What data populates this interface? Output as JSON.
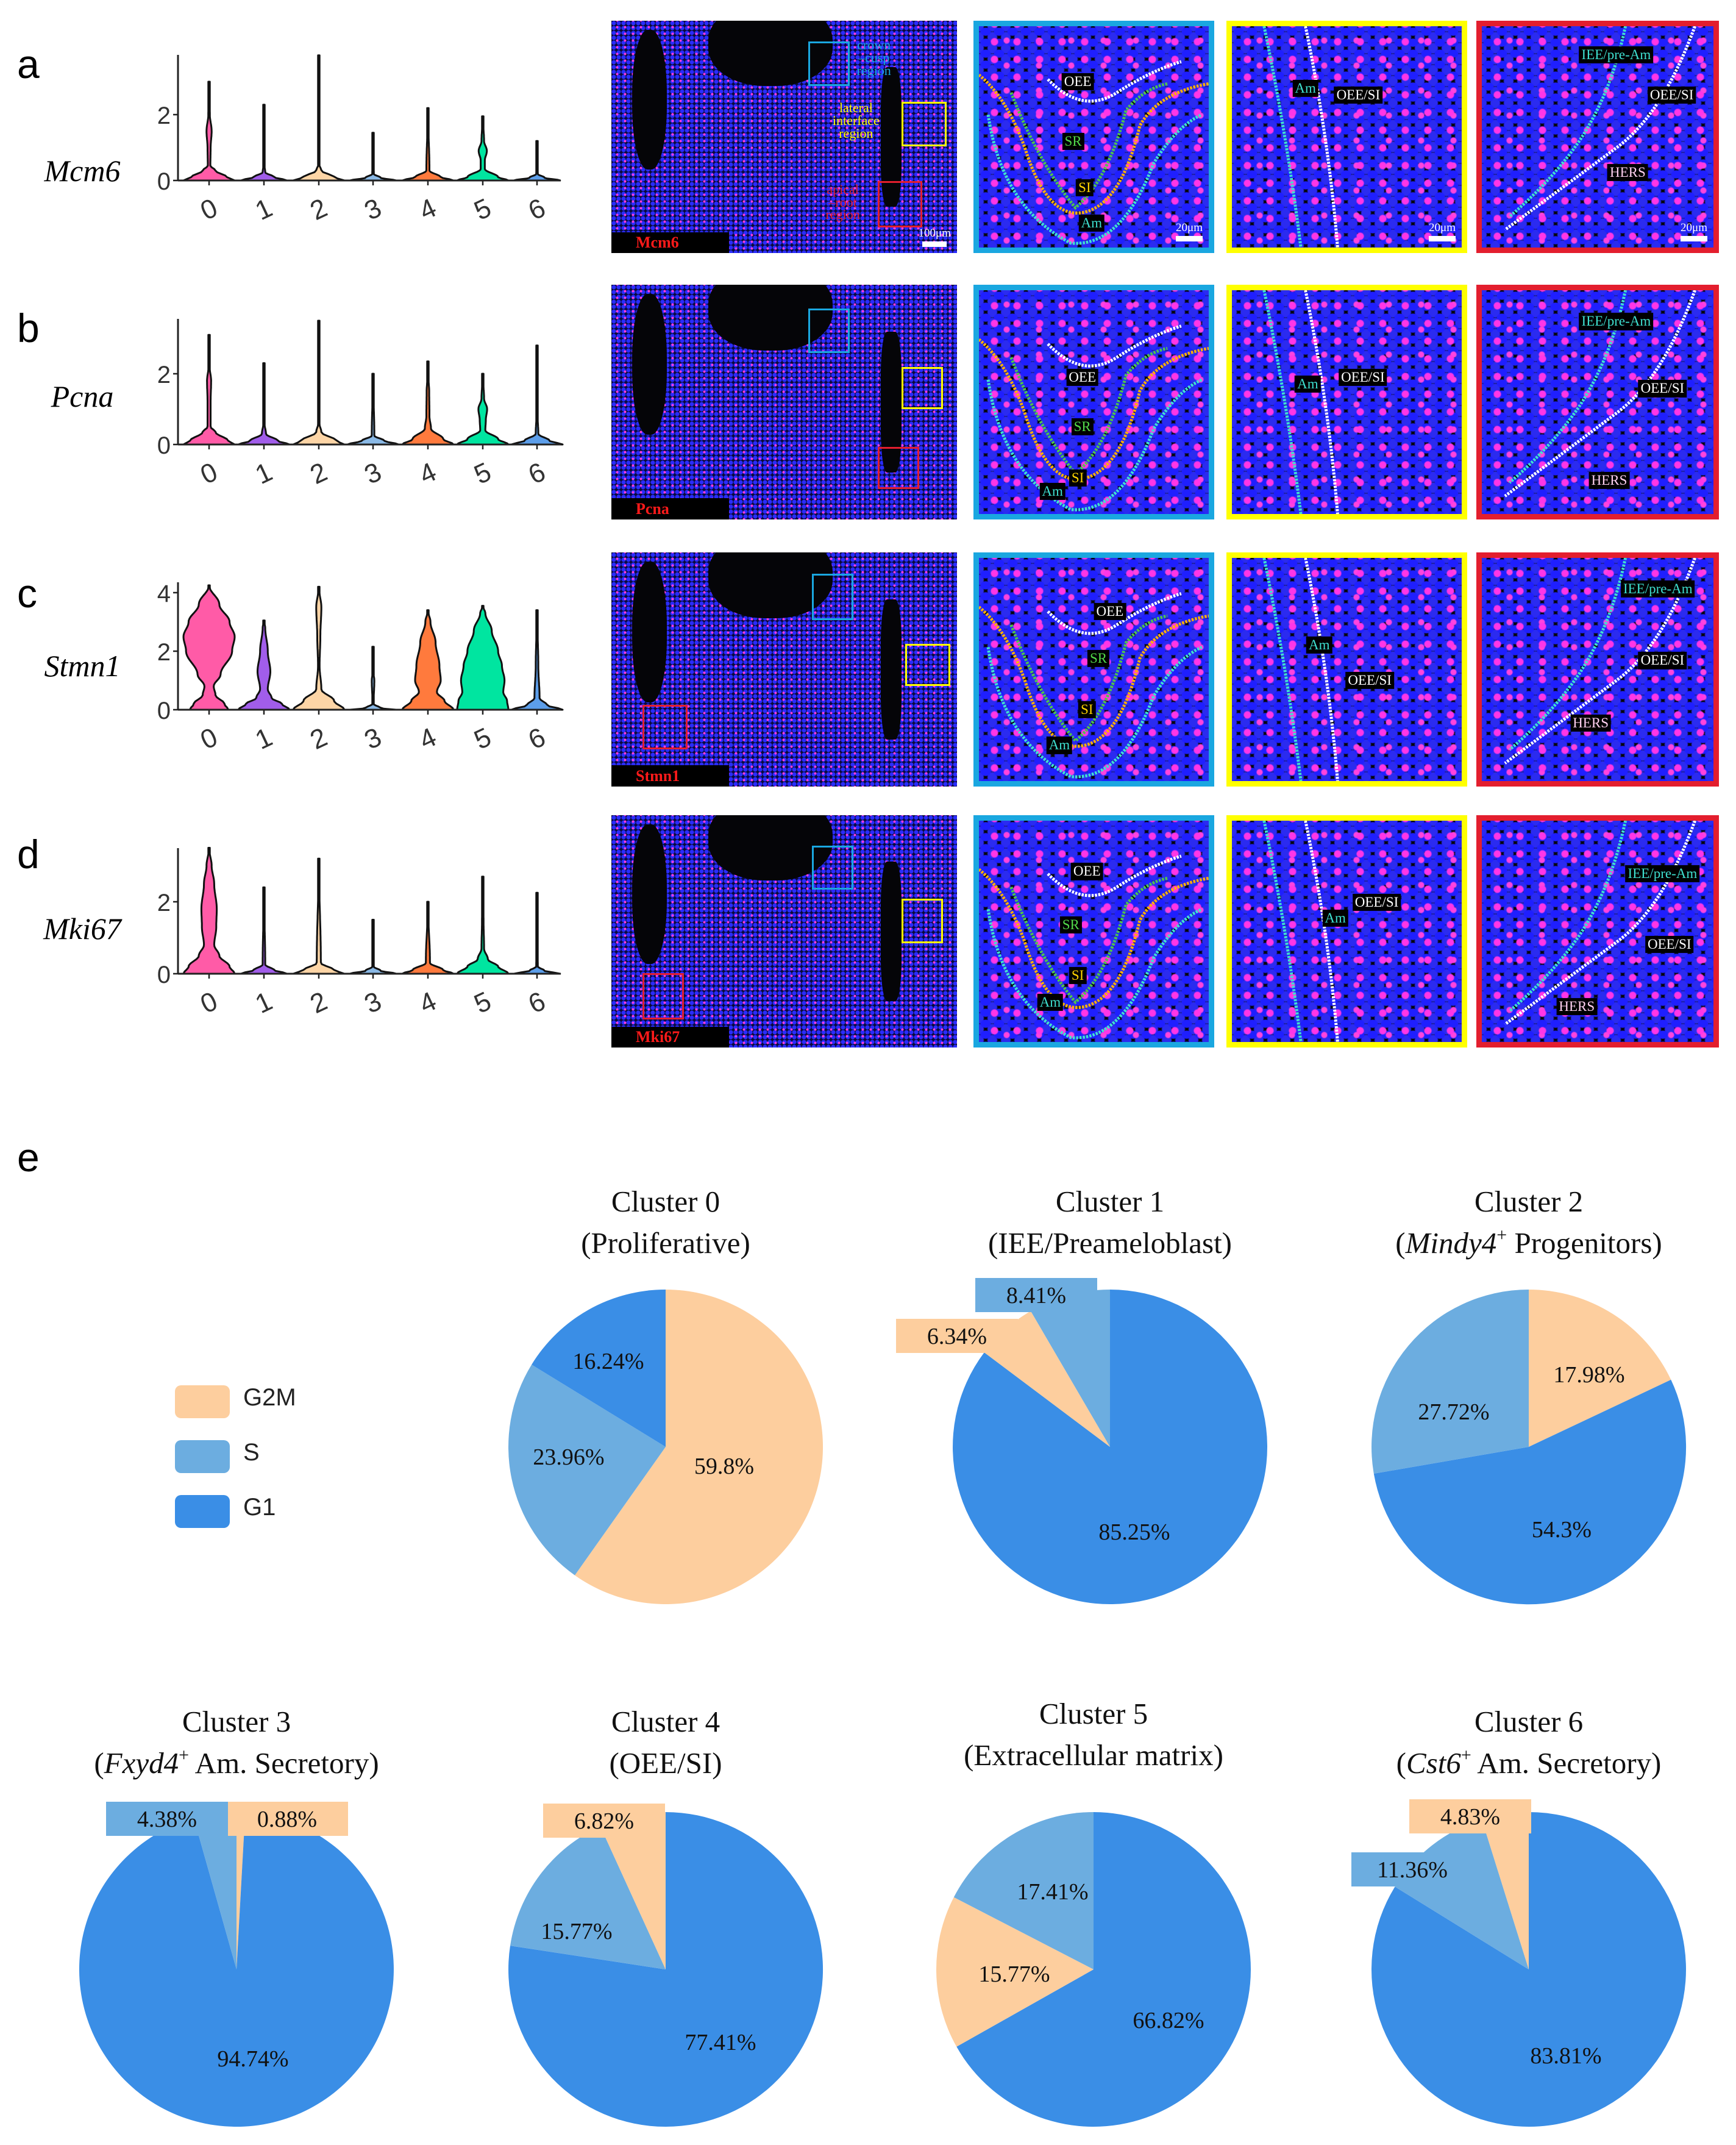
{
  "panel_letters": {
    "a": "a",
    "b": "b",
    "c": "c",
    "d": "d",
    "e": "e"
  },
  "microscopy": {
    "frame_colors": {
      "crown": "#1AA7E0",
      "lateral": "#FFFF00",
      "apical": "#E31E2E"
    },
    "label_colors": {
      "OEE": "#ffffff",
      "SR": "#52d94a",
      "SI": "#ffd400",
      "Am": "#3fe0d0",
      "OEE/SI": "#ffffff",
      "IEE/pre-Am": "#3fe0d0",
      "HERS": "#ffd0f0"
    },
    "rows": [
      {
        "gene_label": "Mcm6",
        "region_labels": {
          "crown": "crown\n–cusp\nregion",
          "lateral": "lateral\ninterface\nregion",
          "apical": "apical\n–root\nregion"
        },
        "scale_overview": "100μm",
        "scale_zoom": "20μm",
        "crown": [
          "OEE",
          "SR",
          "SI",
          "Am"
        ],
        "lateral": [
          "Am",
          "OEE/SI"
        ],
        "apical": [
          "IEE/pre-Am",
          "OEE/SI",
          "HERS"
        ]
      },
      {
        "gene_label": "Pcna",
        "crown": [
          "OEE",
          "SR",
          "SI",
          "Am"
        ],
        "lateral": [
          "Am",
          "OEE/SI"
        ],
        "apical": [
          "IEE/pre-Am",
          "OEE/SI",
          "HERS"
        ]
      },
      {
        "gene_label": "Stmn1",
        "crown": [
          "OEE",
          "SR",
          "SI",
          "Am"
        ],
        "lateral": [
          "Am",
          "OEE/SI"
        ],
        "apical": [
          "IEE/pre-Am",
          "OEE/SI",
          "HERS"
        ]
      },
      {
        "gene_label": "Mki67",
        "crown": [
          "OEE",
          "SR",
          "SI",
          "Am"
        ],
        "lateral": [
          "Am",
          "OEE/SI"
        ],
        "apical": [
          "IEE/pre-Am",
          "OEE/SI",
          "HERS"
        ]
      }
    ]
  },
  "legend": {
    "items": [
      {
        "label": "G2M",
        "color": "#FDCE9E"
      },
      {
        "label": "S",
        "color": "#6CADE0"
      },
      {
        "label": "G1",
        "color": "#3A8EE6"
      }
    ]
  },
  "chart_data": [
    {
      "type": "violin",
      "panel": "a",
      "gene": "Mcm6",
      "categories": [
        "0",
        "1",
        "2",
        "3",
        "4",
        "5",
        "6"
      ],
      "yticks": [
        "0",
        "2"
      ],
      "ytick_values": [
        0,
        2
      ],
      "colors": [
        "#FF5BA7",
        "#A15DEA",
        "#FDD5A6",
        "#8AB9E6",
        "#FF7A3D",
        "#00E5A0",
        "#5C9EEA"
      ],
      "max": [
        3.0,
        2.3,
        3.8,
        1.45,
        2.2,
        1.95,
        1.2
      ],
      "density": [
        [
          [
            0,
            1
          ],
          [
            0.1,
            0.7
          ],
          [
            0.3,
            0.25
          ],
          [
            0.45,
            0.05
          ],
          [
            1.0,
            0.06
          ],
          [
            1.5,
            0.1
          ],
          [
            2.0,
            0.03
          ],
          [
            3.0,
            0
          ]
        ],
        [
          [
            0,
            0.9
          ],
          [
            0.1,
            0.4
          ],
          [
            0.25,
            0.05
          ],
          [
            0.5,
            0.01
          ],
          [
            2.3,
            0
          ]
        ],
        [
          [
            0,
            1
          ],
          [
            0.1,
            0.6
          ],
          [
            0.3,
            0.1
          ],
          [
            0.5,
            0.01
          ],
          [
            3.8,
            0
          ]
        ],
        [
          [
            0,
            0.9
          ],
          [
            0.08,
            0.3
          ],
          [
            0.2,
            0.03
          ],
          [
            1.45,
            0
          ]
        ],
        [
          [
            0,
            1
          ],
          [
            0.1,
            0.5
          ],
          [
            0.3,
            0.06
          ],
          [
            2.2,
            0
          ]
        ],
        [
          [
            0,
            1
          ],
          [
            0.1,
            0.6
          ],
          [
            0.35,
            0.08
          ],
          [
            0.6,
            0.08
          ],
          [
            0.9,
            0.16
          ],
          [
            1.2,
            0.05
          ],
          [
            1.95,
            0
          ]
        ],
        [
          [
            0,
            0.9
          ],
          [
            0.08,
            0.3
          ],
          [
            0.2,
            0.03
          ],
          [
            1.2,
            0
          ]
        ]
      ]
    },
    {
      "type": "violin",
      "panel": "b",
      "gene": "Pcna",
      "categories": [
        "0",
        "1",
        "2",
        "3",
        "4",
        "5",
        "6"
      ],
      "yticks": [
        "0",
        "2"
      ],
      "ytick_values": [
        0,
        2
      ],
      "colors": [
        "#FF5BA7",
        "#A15DEA",
        "#FDD5A6",
        "#8AB9E6",
        "#FF7A3D",
        "#00E5A0",
        "#5C9EEA"
      ],
      "max": [
        3.1,
        2.3,
        3.5,
        2.0,
        2.35,
        2.0,
        2.8
      ],
      "density": [
        [
          [
            0,
            1
          ],
          [
            0.1,
            0.75
          ],
          [
            0.35,
            0.25
          ],
          [
            0.5,
            0.06
          ],
          [
            1.2,
            0.06
          ],
          [
            1.8,
            0.08
          ],
          [
            2.2,
            0.02
          ],
          [
            3.1,
            0
          ]
        ],
        [
          [
            0,
            1
          ],
          [
            0.1,
            0.55
          ],
          [
            0.3,
            0.08
          ],
          [
            0.6,
            0.02
          ],
          [
            2.3,
            0
          ]
        ],
        [
          [
            0,
            1
          ],
          [
            0.1,
            0.7
          ],
          [
            0.35,
            0.1
          ],
          [
            0.6,
            0.02
          ],
          [
            3.5,
            0
          ]
        ],
        [
          [
            0,
            1
          ],
          [
            0.1,
            0.45
          ],
          [
            0.25,
            0.05
          ],
          [
            2.0,
            0
          ]
        ],
        [
          [
            0,
            1
          ],
          [
            0.15,
            0.6
          ],
          [
            0.45,
            0.12
          ],
          [
            0.8,
            0.06
          ],
          [
            1.5,
            0.05
          ],
          [
            1.9,
            0.02
          ],
          [
            2.35,
            0
          ]
        ],
        [
          [
            0,
            1
          ],
          [
            0.15,
            0.6
          ],
          [
            0.4,
            0.1
          ],
          [
            0.7,
            0.12
          ],
          [
            1.0,
            0.17
          ],
          [
            1.3,
            0.05
          ],
          [
            2.0,
            0
          ]
        ],
        [
          [
            0,
            1
          ],
          [
            0.1,
            0.5
          ],
          [
            0.3,
            0.05
          ],
          [
            1.0,
            0.01
          ],
          [
            2.8,
            0
          ]
        ]
      ]
    },
    {
      "type": "violin",
      "panel": "c",
      "gene": "Stmn1",
      "categories": [
        "0",
        "1",
        "2",
        "3",
        "4",
        "5",
        "6"
      ],
      "yticks": [
        "0",
        "2",
        "4"
      ],
      "ytick_values": [
        0,
        2,
        4
      ],
      "colors": [
        "#FF5BA7",
        "#A15DEA",
        "#FDD5A6",
        "#8AB9E6",
        "#FF7A3D",
        "#00E5A0",
        "#5C9EEA"
      ],
      "max": [
        4.25,
        3.05,
        4.2,
        2.15,
        3.4,
        3.55,
        3.4
      ],
      "density": [
        [
          [
            0,
            0.75
          ],
          [
            0.2,
            0.6
          ],
          [
            0.5,
            0.25
          ],
          [
            0.8,
            0.18
          ],
          [
            1.2,
            0.45
          ],
          [
            2.0,
            0.9
          ],
          [
            2.5,
            1.0
          ],
          [
            3.0,
            0.8
          ],
          [
            3.6,
            0.4
          ],
          [
            4.25,
            0
          ]
        ],
        [
          [
            0,
            1
          ],
          [
            0.2,
            0.7
          ],
          [
            0.4,
            0.3
          ],
          [
            0.7,
            0.15
          ],
          [
            1.3,
            0.25
          ],
          [
            2.0,
            0.15
          ],
          [
            2.8,
            0.05
          ],
          [
            3.05,
            0
          ]
        ],
        [
          [
            0,
            1
          ],
          [
            0.3,
            0.6
          ],
          [
            0.7,
            0.1
          ],
          [
            1.5,
            0.03
          ],
          [
            2.5,
            0.06
          ],
          [
            3.5,
            0.1
          ],
          [
            4.2,
            0
          ]
        ],
        [
          [
            0,
            0.9
          ],
          [
            0.05,
            0.3
          ],
          [
            0.2,
            0.02
          ],
          [
            1.0,
            0.05
          ],
          [
            1.3,
            0.01
          ],
          [
            2.15,
            0
          ]
        ],
        [
          [
            0,
            1
          ],
          [
            0.3,
            0.65
          ],
          [
            0.6,
            0.35
          ],
          [
            1.0,
            0.5
          ],
          [
            1.5,
            0.45
          ],
          [
            2.3,
            0.3
          ],
          [
            3.0,
            0.1
          ],
          [
            3.4,
            0
          ]
        ],
        [
          [
            0,
            1
          ],
          [
            0.3,
            0.95
          ],
          [
            0.6,
            0.8
          ],
          [
            1.0,
            0.85
          ],
          [
            1.5,
            0.75
          ],
          [
            2.0,
            0.6
          ],
          [
            2.7,
            0.35
          ],
          [
            3.3,
            0.1
          ],
          [
            3.55,
            0
          ]
        ],
        [
          [
            0,
            1
          ],
          [
            0.15,
            0.4
          ],
          [
            0.4,
            0.1
          ],
          [
            1.5,
            0.05
          ],
          [
            3.4,
            0
          ]
        ]
      ]
    },
    {
      "type": "violin",
      "panel": "d",
      "gene": "Mki67",
      "categories": [
        "0",
        "1",
        "2",
        "3",
        "4",
        "5",
        "6"
      ],
      "yticks": [
        "0",
        "2"
      ],
      "ytick_values": [
        0,
        2
      ],
      "colors": [
        "#FF5BA7",
        "#A15DEA",
        "#FDD5A6",
        "#8AB9E6",
        "#FF7A3D",
        "#00E5A0",
        "#5C9EEA"
      ],
      "max": [
        3.5,
        2.4,
        3.2,
        1.5,
        2.0,
        2.7,
        2.25
      ],
      "density": [
        [
          [
            0,
            1
          ],
          [
            0.2,
            0.8
          ],
          [
            0.5,
            0.4
          ],
          [
            0.8,
            0.2
          ],
          [
            1.3,
            0.28
          ],
          [
            1.8,
            0.3
          ],
          [
            2.5,
            0.2
          ],
          [
            3.0,
            0.1
          ],
          [
            3.5,
            0
          ]
        ],
        [
          [
            0,
            0.9
          ],
          [
            0.1,
            0.4
          ],
          [
            0.25,
            0.05
          ],
          [
            2.4,
            0
          ]
        ],
        [
          [
            0,
            1
          ],
          [
            0.1,
            0.6
          ],
          [
            0.3,
            0.08
          ],
          [
            3.2,
            0
          ]
        ],
        [
          [
            0,
            0.9
          ],
          [
            0.08,
            0.3
          ],
          [
            0.2,
            0.02
          ],
          [
            1.5,
            0
          ]
        ],
        [
          [
            0,
            1
          ],
          [
            0.1,
            0.6
          ],
          [
            0.3,
            0.08
          ],
          [
            2.0,
            0
          ]
        ],
        [
          [
            0,
            1
          ],
          [
            0.2,
            0.6
          ],
          [
            0.4,
            0.2
          ],
          [
            0.7,
            0.05
          ],
          [
            1.5,
            0.03
          ],
          [
            2.7,
            0
          ]
        ],
        [
          [
            0,
            0.9
          ],
          [
            0.08,
            0.3
          ],
          [
            0.2,
            0.03
          ],
          [
            2.25,
            0
          ]
        ]
      ]
    },
    {
      "type": "pie",
      "title": "Cluster 0",
      "subtitle": {
        "pre": "(Proliferative)",
        "italic": "",
        "sup": "",
        "post": ""
      },
      "slices": [
        {
          "phase": "G2M",
          "value": 59.8,
          "label": "59.8%"
        },
        {
          "phase": "S",
          "value": 23.96,
          "label": "23.96%"
        },
        {
          "phase": "G1",
          "value": 16.24,
          "label": "16.24%"
        }
      ]
    },
    {
      "type": "pie",
      "title": "Cluster 1",
      "subtitle": {
        "pre": "(IEE/Preameloblast)",
        "italic": "",
        "sup": "",
        "post": ""
      },
      "slices": [
        {
          "phase": "G1",
          "value": 85.25,
          "label": "85.25%"
        },
        {
          "phase": "G2M",
          "value": 6.34,
          "label": "6.34%"
        },
        {
          "phase": "S",
          "value": 8.41,
          "label": "8.41%"
        }
      ]
    },
    {
      "type": "pie",
      "title": "Cluster 2",
      "subtitle": {
        "pre": "(",
        "italic": "Mindy4",
        "sup": "+",
        "post": " Progenitors)"
      },
      "slices": [
        {
          "phase": "G2M",
          "value": 17.98,
          "label": "17.98%"
        },
        {
          "phase": "G1",
          "value": 54.3,
          "label": "54.3%"
        },
        {
          "phase": "S",
          "value": 27.72,
          "label": "27.72%"
        }
      ]
    },
    {
      "type": "pie",
      "title": "Cluster 3",
      "subtitle": {
        "pre": "(",
        "italic": "Fxyd4",
        "sup": "+",
        "post": " Am. Secretory)"
      },
      "slices": [
        {
          "phase": "G2M",
          "value": 0.88,
          "label": "0.88%"
        },
        {
          "phase": "G1",
          "value": 94.74,
          "label": "94.74%"
        },
        {
          "phase": "S",
          "value": 4.38,
          "label": "4.38%"
        }
      ]
    },
    {
      "type": "pie",
      "title": "Cluster 4",
      "subtitle": {
        "pre": "(OEE/SI)",
        "italic": "",
        "sup": "",
        "post": ""
      },
      "slices": [
        {
          "phase": "G1",
          "value": 77.41,
          "label": "77.41%"
        },
        {
          "phase": "S",
          "value": 15.77,
          "label": "15.77%"
        },
        {
          "phase": "G2M",
          "value": 6.82,
          "label": "6.82%"
        }
      ]
    },
    {
      "type": "pie",
      "title": "Cluster 5",
      "subtitle": {
        "pre": "(Extracellular matrix)",
        "italic": "",
        "sup": "",
        "post": ""
      },
      "slices": [
        {
          "phase": "G1",
          "value": 66.82,
          "label": "66.82%"
        },
        {
          "phase": "G2M",
          "value": 15.77,
          "label": "15.77%"
        },
        {
          "phase": "S",
          "value": 17.41,
          "label": "17.41%"
        }
      ]
    },
    {
      "type": "pie",
      "title": "Cluster 6",
      "subtitle": {
        "pre": "(",
        "italic": "Cst6",
        "sup": "+",
        "post": " Am. Secretory)"
      },
      "slices": [
        {
          "phase": "G1",
          "value": 83.81,
          "label": "83.81%"
        },
        {
          "phase": "S",
          "value": 11.36,
          "label": "11.36%"
        },
        {
          "phase": "G2M",
          "value": 4.83,
          "label": "4.83%"
        }
      ]
    }
  ]
}
